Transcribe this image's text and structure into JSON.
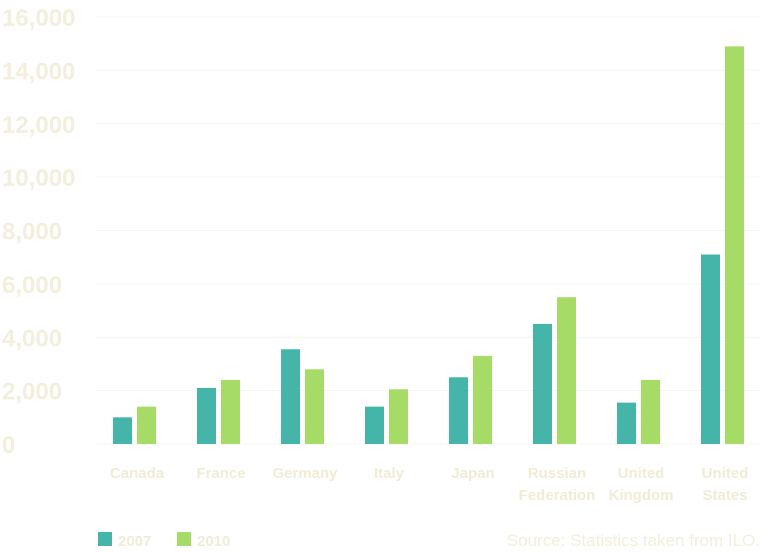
{
  "chart_data": {
    "type": "bar",
    "title": "",
    "xlabel": "",
    "ylabel": "",
    "categories": [
      [
        "Canada"
      ],
      [
        "France"
      ],
      [
        "Germany"
      ],
      [
        "Italy"
      ],
      [
        "Japan"
      ],
      [
        "Russian",
        "Federation"
      ],
      [
        "United",
        "Kingdom"
      ],
      [
        "United",
        "States"
      ]
    ],
    "series": [
      {
        "name": "2007",
        "color": "#44b5a8",
        "values": [
          1000,
          2100,
          3550,
          1400,
          2500,
          4500,
          1550,
          7100
        ]
      },
      {
        "name": "2010",
        "color": "#a7db67",
        "values": [
          1400,
          2400,
          2800,
          2050,
          3300,
          5500,
          2400,
          14900
        ]
      }
    ],
    "ylim": [
      0,
      16000
    ],
    "yticks": [
      0,
      2000,
      4000,
      6000,
      8000,
      10000,
      12000,
      14000,
      16000
    ],
    "ytick_labels": [
      "0",
      "2,000",
      "4,000",
      "6,000",
      "8,000",
      "10,000",
      "12,000",
      "14,000",
      "16,000"
    ],
    "grid": true,
    "legend_position": "bottom-left",
    "source_note": "Source: Statistics taken from ILO."
  }
}
